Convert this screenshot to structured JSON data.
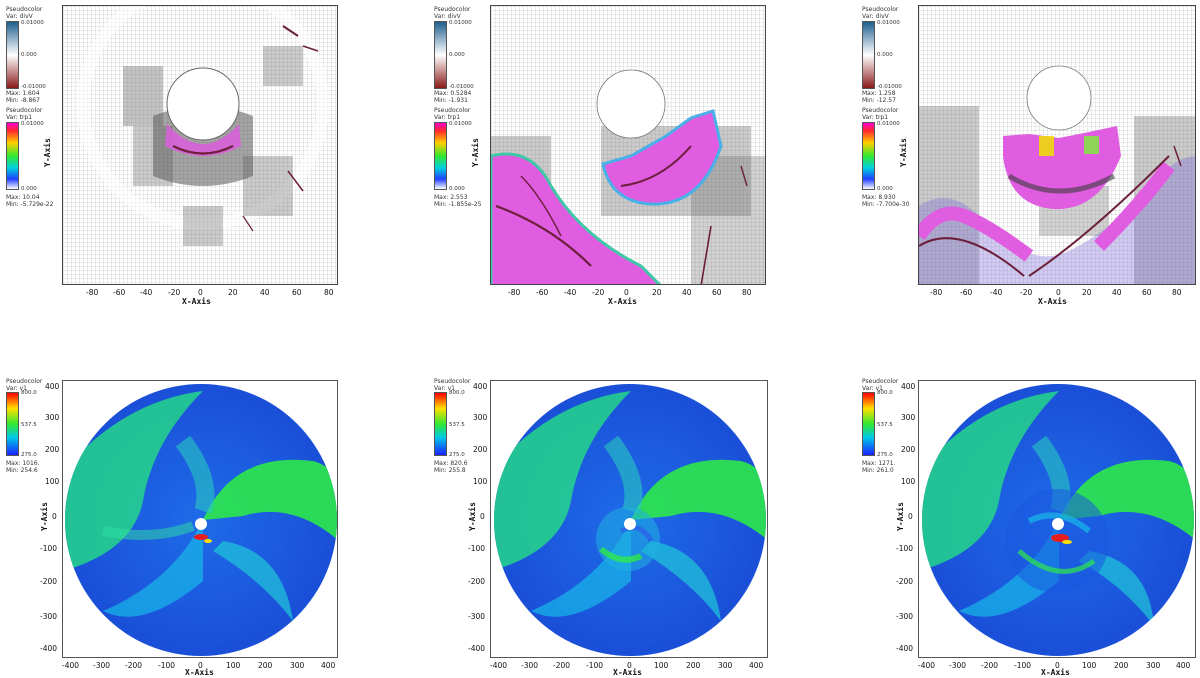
{
  "panels_top": [
    {
      "legend1": {
        "title": "Pseudocolor",
        "var": "Var: divV",
        "max_label": "0.01000",
        "mid_label": "0.000",
        "min_label": "-0.01000",
        "stat_max": "Max: 1.604",
        "stat_min": "Min: -8.867"
      },
      "legend2": {
        "title": "Pseudocolor",
        "var": "Var: trp1",
        "max_label": "0.01000",
        "min_label": "0.000",
        "stat_max": "Max: 10.04",
        "stat_min": "Min: -5.729e-22"
      },
      "xticks": [
        "-80",
        "-60",
        "-40",
        "-20",
        "0",
        "20",
        "40",
        "60",
        "80"
      ],
      "x_axis_title": "X-Axis",
      "y_axis_title": "Y-Axis"
    },
    {
      "legend1": {
        "title": "Pseudocolor",
        "var": "Var: divV",
        "max_label": "0.01000",
        "mid_label": "0.000",
        "min_label": "-0.01000",
        "stat_max": "Max: 0.5284",
        "stat_min": "Min: -1.931"
      },
      "legend2": {
        "title": "Pseudocolor",
        "var": "Var: trp1",
        "max_label": "0.01000",
        "min_label": "0.000",
        "stat_max": "Max: 2.553",
        "stat_min": "Min: -1.855e-25"
      },
      "xticks": [
        "-80",
        "-60",
        "-40",
        "-20",
        "0",
        "20",
        "40",
        "60",
        "80"
      ],
      "x_axis_title": "X-Axis",
      "y_axis_title": "Y-Axis"
    },
    {
      "legend1": {
        "title": "Pseudocolor",
        "var": "Var: divV",
        "max_label": "0.01000",
        "mid_label": "0.000",
        "min_label": "-0.01000",
        "stat_max": "Max: 1.258",
        "stat_min": "Min: -12.57"
      },
      "legend2": {
        "title": "Pseudocolor",
        "var": "Var: trp1",
        "max_label": "0.01000",
        "min_label": "0.000",
        "stat_max": "Max: 8.930",
        "stat_min": "Min: -7.700e-30"
      },
      "xticks": [
        "-80",
        "-60",
        "-40",
        "-20",
        "0",
        "20",
        "40",
        "60",
        "80"
      ],
      "x_axis_title": "X-Axis",
      "y_axis_title": "Y-Axis"
    }
  ],
  "panels_bottom": [
    {
      "legend": {
        "title": "Pseudocolor",
        "var": "Var: v1",
        "max_label": "800.0",
        "mid_label": "537.5",
        "min_label": "275.0",
        "stat_max": "Max: 1016.",
        "stat_min": "Min: 254.6"
      },
      "xticks": [
        "-400",
        "-300",
        "-200",
        "-100",
        "0",
        "100",
        "200",
        "300",
        "400"
      ],
      "yticks": [
        "400",
        "300",
        "200",
        "100",
        "0",
        "-100",
        "-200",
        "-300",
        "-400"
      ],
      "x_axis_title": "X-Axis",
      "y_axis_title": "Y-Axis"
    },
    {
      "legend": {
        "title": "Pseudocolor",
        "var": "Var: v1",
        "max_label": "800.0",
        "mid_label": "537.5",
        "min_label": "275.0",
        "stat_max": "Max: 820.6",
        "stat_min": "Min: 255.8"
      },
      "xticks": [
        "-400",
        "-300",
        "-200",
        "-100",
        "0",
        "100",
        "200",
        "300",
        "400"
      ],
      "yticks": [
        "400",
        "300",
        "200",
        "100",
        "0",
        "-100",
        "-200",
        "-300",
        "-400"
      ],
      "x_axis_title": "X-Axis",
      "y_axis_title": "Y-Axis"
    },
    {
      "legend": {
        "title": "Pseudocolor",
        "var": "Var: v1",
        "max_label": "800.0",
        "mid_label": "537.5",
        "min_label": "275.0",
        "stat_max": "Max: 1271.",
        "stat_min": "Min: 261.0"
      },
      "xticks": [
        "-400",
        "-300",
        "-200",
        "-100",
        "0",
        "100",
        "200",
        "300",
        "400"
      ],
      "yticks": [
        "400",
        "300",
        "200",
        "100",
        "0",
        "-100",
        "-200",
        "-300",
        "-400"
      ],
      "x_axis_title": "X-Axis",
      "y_axis_title": "Y-Axis"
    }
  ],
  "colors": {
    "divv_top": "#1f5f8f",
    "divv_mid": "#ffffff",
    "divv_bot": "#8b1a1a",
    "magenta": "#e05ce0",
    "dark_streak": "#6b1f3a",
    "grid": "#9a9a9a",
    "blue": "#1e4fd8",
    "green": "#2ee84a",
    "cyan": "#1fc8d8"
  }
}
